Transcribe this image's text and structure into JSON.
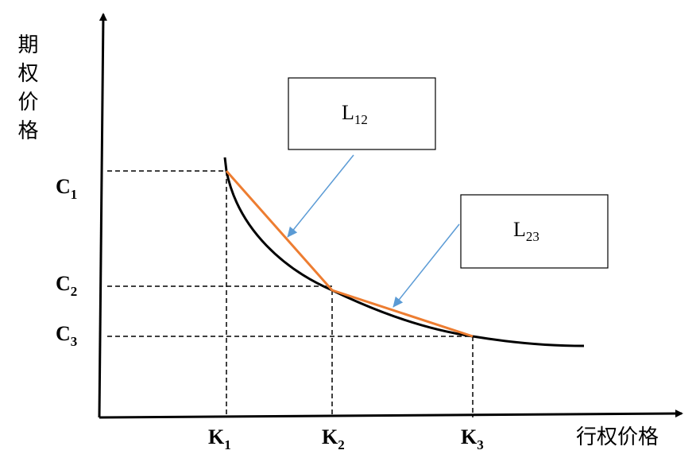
{
  "axes": {
    "y_label": "期权价格",
    "x_label": "行权价格"
  },
  "y_labels": [
    {
      "base": "C",
      "sub": "1"
    },
    {
      "base": "C",
      "sub": "2"
    },
    {
      "base": "C",
      "sub": "3"
    }
  ],
  "x_labels": [
    {
      "base": "K",
      "sub": "1"
    },
    {
      "base": "K",
      "sub": "2"
    },
    {
      "base": "K",
      "sub": "3"
    }
  ],
  "boxes": [
    {
      "base": "L",
      "sub": "12"
    },
    {
      "base": "L",
      "sub": "23"
    }
  ]
}
